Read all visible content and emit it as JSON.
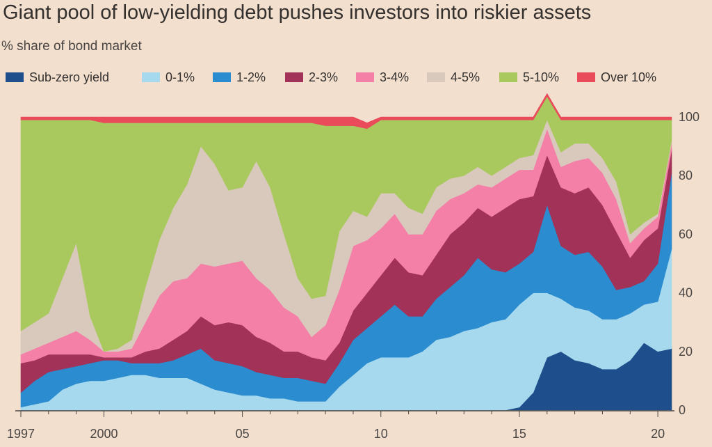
{
  "title": "Giant pool of low-yielding debt pushes investors into riskier assets",
  "subtitle": "% share of bond market",
  "legend": [
    {
      "label": "Sub-zero yield",
      "color": "#1e4f8c",
      "icon": "swatch"
    },
    {
      "label": "0-1%",
      "color": "#a6d9ed",
      "icon": "swatch"
    },
    {
      "label": "1-2%",
      "color": "#2b8ccf",
      "icon": "swatch"
    },
    {
      "label": "2-3%",
      "color": "#a23257",
      "icon": "swatch"
    },
    {
      "label": "3-4%",
      "color": "#f480a8",
      "icon": "swatch"
    },
    {
      "label": "4-5%",
      "color": "#d9c8bc",
      "icon": "swatch"
    },
    {
      "label": "5-10%",
      "color": "#a9c95e",
      "icon": "swatch"
    },
    {
      "label": "Over 10%",
      "color": "#e94b5b",
      "icon": "swatch"
    }
  ],
  "chart_data": {
    "type": "area",
    "stacked": true,
    "title": "Giant pool of low-yielding debt pushes investors into riskier assets",
    "subtitle": "% share of bond market",
    "x": [
      1997.0,
      1997.5,
      1998.0,
      1998.5,
      1999.0,
      1999.5,
      2000.0,
      2000.5,
      2001.0,
      2001.5,
      2002.0,
      2002.5,
      2003.0,
      2003.5,
      2004.0,
      2004.5,
      2005.0,
      2005.5,
      2006.0,
      2006.5,
      2007.0,
      2007.5,
      2008.0,
      2008.5,
      2009.0,
      2009.5,
      2010.0,
      2010.5,
      2011.0,
      2011.5,
      2012.0,
      2012.5,
      2013.0,
      2013.5,
      2014.0,
      2014.5,
      2015.0,
      2015.5,
      2016.0,
      2016.5,
      2017.0,
      2017.5,
      2018.0,
      2018.5,
      2019.0,
      2019.5,
      2020.0,
      2020.5
    ],
    "x_tick_labels": [
      "1997",
      "2000",
      "05",
      "10",
      "15",
      "20"
    ],
    "x_tick_values": [
      1997,
      2000,
      2005,
      2010,
      2015,
      2020
    ],
    "xlim": [
      1996.9,
      2020.55
    ],
    "ylim": [
      0,
      100
    ],
    "y_ticks": [
      0,
      20,
      40,
      60,
      80,
      100
    ],
    "y_axis_side": "right",
    "grid": false,
    "legend_position": "top",
    "series": [
      {
        "name": "Sub-zero yield",
        "color": "#1e4f8c",
        "values": [
          0,
          0,
          0,
          0,
          0,
          0,
          0,
          0,
          0,
          0,
          0,
          0,
          0,
          0,
          0,
          0,
          0,
          0,
          0,
          0,
          0,
          0,
          0,
          0,
          0,
          0,
          0,
          0,
          0,
          0,
          0,
          0,
          0,
          0,
          0,
          0,
          1,
          6,
          18,
          20,
          17,
          16,
          14,
          14,
          17,
          23,
          20,
          21
        ]
      },
      {
        "name": "0-1%",
        "color": "#a6d9ed",
        "values": [
          1,
          2,
          3,
          7,
          9,
          10,
          10,
          11,
          12,
          12,
          11,
          11,
          11,
          9,
          7,
          6,
          5,
          5,
          4,
          4,
          3,
          3,
          3,
          8,
          12,
          16,
          18,
          18,
          18,
          20,
          24,
          25,
          27,
          28,
          30,
          31,
          35,
          34,
          22,
          18,
          18,
          18,
          17,
          17,
          16,
          13,
          17,
          34
        ]
      },
      {
        "name": "1-2%",
        "color": "#2b8ccf",
        "values": [
          5,
          8,
          10,
          7,
          6,
          6,
          7,
          6,
          4,
          4,
          5,
          6,
          8,
          12,
          10,
          10,
          10,
          8,
          8,
          7,
          8,
          7,
          6,
          8,
          12,
          12,
          14,
          18,
          14,
          12,
          14,
          17,
          19,
          24,
          18,
          16,
          14,
          14,
          30,
          18,
          18,
          20,
          18,
          10,
          9,
          8,
          13,
          26
        ]
      },
      {
        "name": "2-3%",
        "color": "#a23257",
        "values": [
          10,
          7,
          6,
          5,
          4,
          3,
          1,
          1,
          2,
          4,
          5,
          7,
          8,
          11,
          12,
          14,
          14,
          12,
          11,
          9,
          9,
          8,
          8,
          7,
          10,
          12,
          14,
          16,
          15,
          14,
          15,
          18,
          18,
          17,
          18,
          22,
          22,
          19,
          17,
          20,
          21,
          22,
          21,
          20,
          10,
          14,
          12,
          8
        ]
      },
      {
        "name": "3-4%",
        "color": "#f480a8",
        "values": [
          3,
          4,
          4,
          6,
          8,
          5,
          2,
          2,
          3,
          10,
          18,
          20,
          18,
          18,
          20,
          20,
          22,
          20,
          18,
          15,
          12,
          7,
          12,
          18,
          22,
          18,
          16,
          15,
          13,
          14,
          15,
          12,
          10,
          8,
          10,
          10,
          10,
          9,
          9,
          7,
          11,
          10,
          11,
          11,
          5,
          4,
          4,
          2
        ]
      },
      {
        "name": "4-5%",
        "color": "#d9c8bc",
        "values": [
          8,
          9,
          10,
          20,
          30,
          8,
          0,
          1,
          3,
          12,
          19,
          25,
          32,
          40,
          35,
          25,
          25,
          40,
          35,
          25,
          13,
          13,
          10,
          20,
          12,
          8,
          12,
          7,
          9,
          7,
          8,
          7,
          6,
          6,
          4,
          4,
          4,
          5,
          3,
          5,
          6,
          5,
          5,
          6,
          3,
          2,
          1,
          1
        ]
      },
      {
        "name": "5-10%",
        "color": "#a9c95e",
        "values": [
          72,
          69,
          66,
          54,
          42,
          67,
          78,
          77,
          74,
          56,
          40,
          29,
          21,
          8,
          14,
          23,
          22,
          13,
          22,
          38,
          53,
          60,
          58,
          36,
          29,
          30,
          25,
          25,
          30,
          32,
          23,
          20,
          19,
          16,
          19,
          16,
          13,
          12,
          8,
          11,
          8,
          8,
          13,
          21,
          39,
          35,
          32,
          7
        ]
      },
      {
        "name": "Over 10%",
        "color": "#e94b5b",
        "values": [
          1,
          1,
          1,
          1,
          1,
          1,
          2,
          2,
          2,
          2,
          2,
          2,
          2,
          2,
          2,
          2,
          2,
          2,
          2,
          2,
          2,
          2,
          3,
          3,
          3,
          2,
          1,
          1,
          1,
          1,
          1,
          1,
          1,
          1,
          1,
          1,
          1,
          1,
          1,
          1,
          1,
          1,
          1,
          1,
          1,
          1,
          1,
          1
        ]
      }
    ]
  }
}
